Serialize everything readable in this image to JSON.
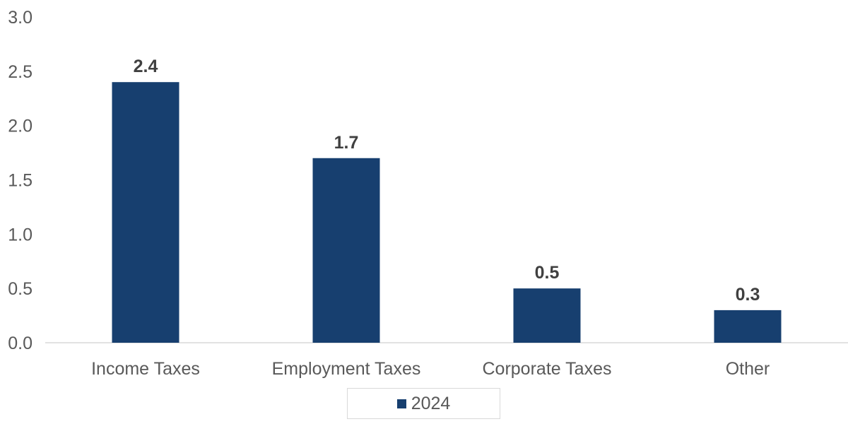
{
  "chart_data": {
    "type": "bar",
    "title": "",
    "xlabel": "",
    "ylabel": "",
    "categories": [
      "Income Taxes",
      "Employment Taxes",
      "Corporate Taxes",
      "Other"
    ],
    "series": [
      {
        "name": "2024",
        "values": [
          2.4,
          1.7,
          0.5,
          0.3
        ],
        "data_labels": [
          "2.4",
          "1.7",
          "0.5",
          "0.3"
        ]
      }
    ],
    "ylim": [
      0,
      3.0
    ],
    "yticks": [
      0.0,
      0.5,
      1.0,
      1.5,
      2.0,
      2.5,
      3.0
    ],
    "ytick_labels": [
      "0.0",
      "0.5",
      "1.0",
      "1.5",
      "2.0",
      "2.5",
      "3.0"
    ],
    "grid": false,
    "legend": "bottom-center"
  },
  "colors": {
    "bar": "#173f6f",
    "axis": "#d9d9d9",
    "text": "#595959",
    "label": "#404040"
  }
}
